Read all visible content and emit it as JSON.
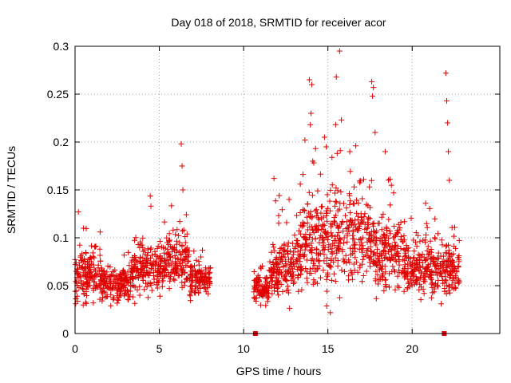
{
  "chart_data": {
    "type": "scatter",
    "title": "Day 018 of 2018, SRMTID for receiver acor",
    "xlabel": "GPS time / hours",
    "ylabel": "SRMTID / TECUs",
    "xlim": [
      0,
      25.2
    ],
    "ylim": [
      0,
      0.3
    ],
    "xticks": [
      0,
      5,
      10,
      15,
      20
    ],
    "xtick_labels": [
      "0",
      "5",
      "10",
      "15",
      "20"
    ],
    "yticks": [
      0,
      0.05,
      0.1,
      0.15,
      0.2,
      0.25,
      0.3
    ],
    "ytick_labels": [
      "0",
      "0.05",
      "0.1",
      "0.15",
      "0.2",
      "0.25",
      "0.3"
    ],
    "grid": true,
    "marker_color": "#e00000",
    "grid_color": "#a0a0a0",
    "data_gap": [
      8.05,
      10.6
    ],
    "zero_markers": [
      {
        "x": 10.7,
        "y": 0
      },
      {
        "x": 21.9,
        "y": 0
      }
    ],
    "segments": [
      {
        "start": 0.0,
        "end": 1.5,
        "base": 0.062,
        "spread": 0.022
      },
      {
        "start": 1.5,
        "end": 3.3,
        "base": 0.052,
        "spread": 0.015
      },
      {
        "start": 3.3,
        "end": 5.3,
        "base": 0.068,
        "spread": 0.022
      },
      {
        "start": 5.3,
        "end": 6.8,
        "base": 0.078,
        "spread": 0.022
      },
      {
        "start": 6.8,
        "end": 8.05,
        "base": 0.056,
        "spread": 0.014
      },
      {
        "start": 10.6,
        "end": 11.5,
        "base": 0.048,
        "spread": 0.012
      },
      {
        "start": 11.5,
        "end": 13.5,
        "base": 0.072,
        "spread": 0.025
      },
      {
        "start": 13.5,
        "end": 17.5,
        "base": 0.098,
        "spread": 0.04
      },
      {
        "start": 17.5,
        "end": 19.5,
        "base": 0.085,
        "spread": 0.03
      },
      {
        "start": 19.5,
        "end": 22.8,
        "base": 0.068,
        "spread": 0.022
      }
    ],
    "spikes": [
      {
        "x": 0.2,
        "y": 0.127
      },
      {
        "x": 0.5,
        "y": 0.11
      },
      {
        "x": 4.5,
        "y": 0.133
      },
      {
        "x": 6.3,
        "y": 0.198
      },
      {
        "x": 6.35,
        "y": 0.175
      },
      {
        "x": 6.4,
        "y": 0.15
      },
      {
        "x": 11.8,
        "y": 0.162
      },
      {
        "x": 12.7,
        "y": 0.14
      },
      {
        "x": 13.9,
        "y": 0.265
      },
      {
        "x": 14.05,
        "y": 0.26
      },
      {
        "x": 14.0,
        "y": 0.23
      },
      {
        "x": 14.1,
        "y": 0.18
      },
      {
        "x": 14.8,
        "y": 0.205
      },
      {
        "x": 14.9,
        "y": 0.195
      },
      {
        "x": 15.5,
        "y": 0.268
      },
      {
        "x": 15.7,
        "y": 0.295
      },
      {
        "x": 15.8,
        "y": 0.223
      },
      {
        "x": 16.3,
        "y": 0.19
      },
      {
        "x": 17.6,
        "y": 0.263
      },
      {
        "x": 17.7,
        "y": 0.257
      },
      {
        "x": 17.65,
        "y": 0.248
      },
      {
        "x": 17.8,
        "y": 0.21
      },
      {
        "x": 18.4,
        "y": 0.19
      },
      {
        "x": 20.8,
        "y": 0.136
      },
      {
        "x": 22.0,
        "y": 0.272
      },
      {
        "x": 22.05,
        "y": 0.243
      },
      {
        "x": 22.1,
        "y": 0.22
      },
      {
        "x": 22.15,
        "y": 0.19
      },
      {
        "x": 22.2,
        "y": 0.16
      }
    ]
  }
}
